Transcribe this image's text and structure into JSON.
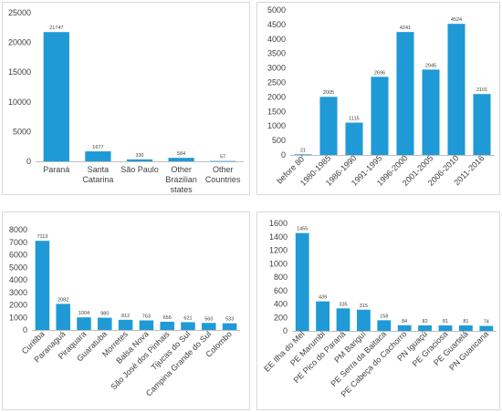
{
  "bar_color": "#1f9ad6",
  "chart_data": [
    {
      "type": "bar",
      "title": "",
      "xlabel": "",
      "ylabel": "",
      "categories": [
        [
          "Paraná"
        ],
        [
          "Santa",
          "Catarina"
        ],
        [
          "São Paulo"
        ],
        [
          "Other",
          "Brazilian",
          "states"
        ],
        [
          "Other",
          "Countries"
        ]
      ],
      "values": [
        21747,
        1677,
        330,
        584,
        57
      ],
      "ylim": [
        0,
        25000
      ],
      "yticks": [
        0,
        5000,
        10000,
        15000,
        20000,
        25000
      ],
      "rotate_labels": false,
      "grid": false
    },
    {
      "type": "bar",
      "title": "",
      "xlabel": "",
      "ylabel": "",
      "categories": [
        "before 80'",
        "1980-1985",
        "1986-1990",
        "1991-1995",
        "1996-2000",
        "2001-2005",
        "2006-2010",
        "2011-2016"
      ],
      "values": [
        21,
        2005,
        1115,
        2696,
        4241,
        2945,
        4524,
        2101
      ],
      "ylim": [
        0,
        5000
      ],
      "yticks": [
        0,
        500,
        1000,
        1500,
        2000,
        2500,
        3000,
        3500,
        4000,
        4500,
        5000
      ],
      "rotate_labels": true,
      "grid": false
    },
    {
      "type": "bar",
      "title": "",
      "xlabel": "",
      "ylabel": "",
      "categories": [
        "Curitiba",
        "Paranaguá",
        "Piraquara",
        "Guaratuba",
        "Morretes",
        "Balsa Nova",
        "São José dos Pinhais",
        "Tijucas do Sul",
        "Campina Grande do Sul",
        "Colombo"
      ],
      "values": [
        7113,
        2082,
        1004,
        980,
        812,
        763,
        656,
        621,
        560,
        533
      ],
      "ylim": [
        0,
        8000
      ],
      "yticks": [
        0,
        1000,
        2000,
        3000,
        4000,
        5000,
        6000,
        7000,
        8000
      ],
      "rotate_labels": true,
      "grid": false
    },
    {
      "type": "bar",
      "title": "",
      "xlabel": "",
      "ylabel": "",
      "categories": [
        "EE Ilha do Mel",
        "PE Marumbi",
        "PE Pico do Paraná",
        "PM Bariguí",
        "PE Serra da Baitaca",
        "PE Cabeça do Cachorro",
        "PN Iguaçú",
        "PE Graciosa",
        "PE Guartelá",
        "PN Guaricana"
      ],
      "values": [
        1455,
        439,
        335,
        315,
        158,
        84,
        82,
        81,
        81,
        74
      ],
      "ylim": [
        0,
        1600
      ],
      "yticks": [
        0,
        200,
        400,
        600,
        800,
        1000,
        1200,
        1400,
        1600
      ],
      "rotate_labels": true,
      "grid": false
    }
  ]
}
